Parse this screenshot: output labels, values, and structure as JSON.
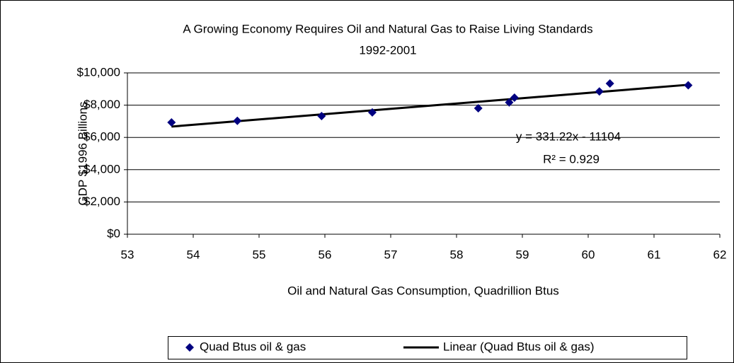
{
  "chart_data": {
    "type": "scatter",
    "title": "A Growing Economy Requires Oil and Natural Gas to Raise Living Standards",
    "subtitle": "1992-2001",
    "x_label": "Oil and Natural Gas Consumption, Quadrillion Btus",
    "y_label": "GDP $1996 Billions",
    "series": [
      {
        "name": "Quad Btus oil & gas",
        "color": "#000080",
        "x": [
          53.67,
          54.67,
          55.95,
          56.72,
          58.33,
          58.8,
          58.88,
          60.17,
          60.33,
          61.52
        ],
        "values": [
          6930,
          7030,
          7325,
          7550,
          7807,
          8170,
          8465,
          8850,
          9342,
          9230
        ]
      }
    ],
    "trendline": {
      "name": "Linear (Quad Btus oil & gas)",
      "color": "#000000"
    },
    "annotations": [
      "y = 331.22x - 11104",
      "R² = 0.929"
    ],
    "xlim": [
      53,
      62
    ],
    "xticks": [
      53,
      54,
      55,
      56,
      57,
      58,
      59,
      60,
      61,
      62
    ],
    "ylim": [
      0,
      10000
    ],
    "yticks": [
      {
        "value": 0,
        "label": "$0"
      },
      {
        "value": 2000,
        "label": "$2,000"
      },
      {
        "value": 4000,
        "label": "$4,000"
      },
      {
        "value": 6000,
        "label": "$6,000"
      },
      {
        "value": 8000,
        "label": "$8,000"
      },
      {
        "value": 10000,
        "label": "$10,000"
      }
    ],
    "grid": true
  }
}
